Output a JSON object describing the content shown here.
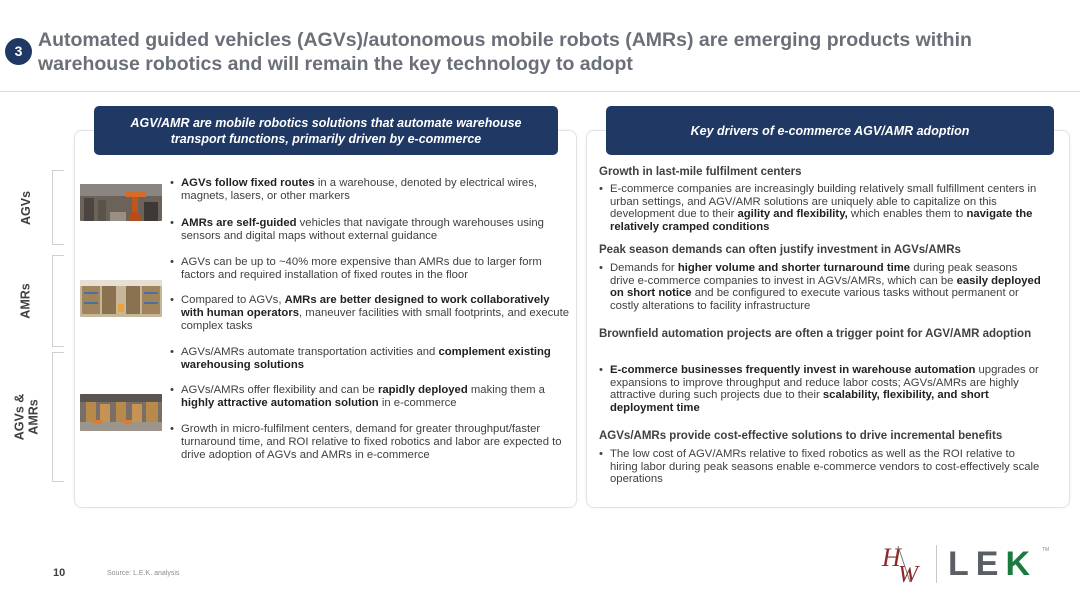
{
  "header": {
    "step_number": "3",
    "title": "Automated guided vehicles (AGVs)/autonomous mobile robots (AMRs) are emerging products within warehouse robotics and will remain the key technology to adopt"
  },
  "left_panel": {
    "banner": "AGV/AMR are mobile robotics solutions that automate warehouse transport functions, primarily driven by e-commerce",
    "sections": [
      {
        "label": "AGVs",
        "image": "robotic-arm-warehouse-photo"
      },
      {
        "label": "AMRs",
        "image": "warehouse-shelves-photo"
      },
      {
        "label_line1": "AGVs &",
        "label_line2": "AMRs",
        "image": "warehouse-robots-photo"
      }
    ],
    "bullets": [
      {
        "bold": "AGVs follow fixed routes",
        "text": " in a warehouse, denoted by electrical wires, magnets, lasers, or other markers"
      },
      {
        "bold": "AMRs are self-guided",
        "text": " vehicles that navigate through warehouses using sensors and digital maps without external guidance"
      },
      {
        "text": "AGVs can be up to ~40% more expensive than AMRs due to larger form factors and required installation of fixed routes in the floor"
      },
      {
        "pre": "Compared to AGVs, ",
        "bold": "AMRs are better designed to work collaboratively with human operators",
        "text": ", maneuver facilities with small footprints, and execute complex tasks"
      },
      {
        "pre": "AGVs/AMRs automate transportation activities and ",
        "bold": "complement existing warehousing solutions"
      },
      {
        "pre": "AGVs/AMRs offer flexibility and can be ",
        "bold": "rapidly deployed",
        "mid": " making them a ",
        "bold2": "highly attractive automation solution",
        "text": " in e-commerce"
      },
      {
        "text": "Growth in micro-fulfilment centers, demand for greater throughput/faster turnaround time, and ROI relative to fixed robotics and labor are expected to drive adoption of AGVs and AMRs in e-commerce"
      }
    ]
  },
  "right_panel": {
    "banner": "Key drivers of e-commerce AGV/AMR adoption",
    "drivers": [
      {
        "heading": "Growth in last-mile fulfilment centers",
        "pre": "E-commerce companies are increasingly building relatively small fulfillment centers in urban settings, and AGV/AMR solutions are uniquely able to capitalize on this development due to their ",
        "bold": "agility and flexibility,",
        "mid": " which enables them to ",
        "bold2": "navigate the relatively cramped conditions"
      },
      {
        "heading": "Peak season demands can often justify investment in AGVs/AMRs",
        "pre": "Demands for ",
        "bold": "higher volume and shorter turnaround time",
        "mid": " during peak seasons drive e-commerce companies to invest in AGVs/AMRs, which can be ",
        "bold2": "easily deployed on short notice",
        "post": " and be configured to execute various tasks without permanent or costly alterations to facility infrastructure"
      },
      {
        "heading": "Brownfield automation projects are often a trigger point for AGV/AMR adoption",
        "bold": "E-commerce businesses frequently invest in warehouse automation",
        "mid": " upgrades or expansions to improve throughput and reduce labor costs; AGVs/AMRs are highly attractive during such projects due to their ",
        "bold2": "scalability, flexibility, and short deployment time"
      },
      {
        "heading": "AGVs/AMRs provide cost-effective solutions to drive incremental benefits",
        "pre": "The low cost of AGV/AMRs relative to fixed robotics as well as the ROI relative to hiring labor during peak seasons enable e-commerce vendors to cost-effectively scale operations"
      }
    ]
  },
  "footer": {
    "page_number": "10",
    "source": "Source: L.E.K. analysis",
    "logo_text": "LEK",
    "logo_tm": "TM"
  },
  "colors": {
    "navy": "#1f3864",
    "title_gray": "#6b7078",
    "lek_green": "#1b7a3e",
    "hw_red": "#8b2a2a"
  }
}
